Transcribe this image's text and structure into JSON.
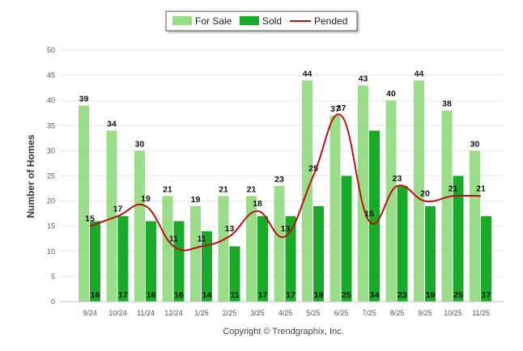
{
  "chart_data": {
    "type": "bar",
    "ylabel": "Number of Homes",
    "xlabel": "",
    "ylim": [
      0,
      50
    ],
    "yticks": [
      0,
      5,
      10,
      15,
      20,
      25,
      30,
      35,
      40,
      45,
      50
    ],
    "grid": true,
    "legend_position": "top-center",
    "categories": [
      "9/24",
      "10/24",
      "11/24",
      "12/24",
      "1/25",
      "2/25",
      "3/25",
      "4/25",
      "5/25",
      "6/25",
      "7/25",
      "8/25",
      "9/25",
      "10/25",
      "11/25"
    ],
    "series": [
      {
        "name": "For Sale",
        "kind": "bar",
        "color": "#99dd88",
        "values": [
          39,
          34,
          30,
          21,
          19,
          21,
          21,
          23,
          44,
          37,
          43,
          40,
          44,
          38,
          30
        ]
      },
      {
        "name": "Sold",
        "kind": "bar",
        "color": "#1aaa2a",
        "values": [
          16,
          17,
          16,
          16,
          14,
          11,
          17,
          17,
          19,
          25,
          34,
          23,
          19,
          25,
          17
        ]
      },
      {
        "name": "Pended",
        "kind": "line",
        "color": "#bb1111",
        "values": [
          15,
          17,
          19,
          11,
          11,
          13,
          18,
          13,
          25,
          37,
          16,
          23,
          20,
          21,
          21
        ]
      }
    ],
    "footer": "Copyright © Trendgraphix, Inc."
  }
}
